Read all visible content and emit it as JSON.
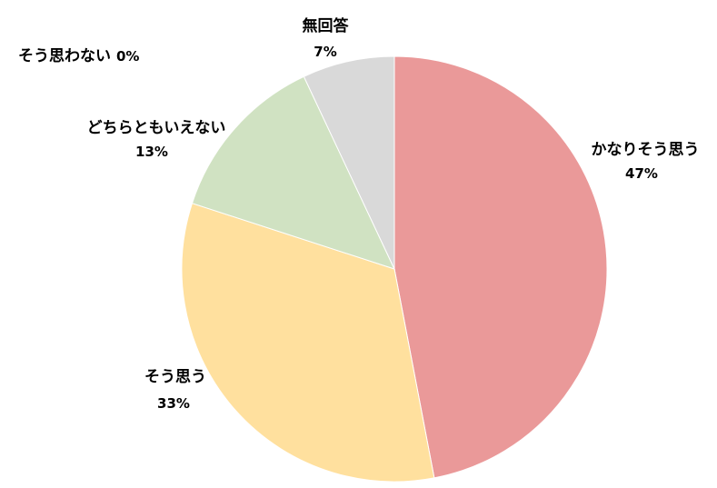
{
  "chart_data": {
    "type": "pie",
    "title": "",
    "slices": [
      {
        "label": "かなりそう思う",
        "value": 47,
        "value_label": "47%",
        "color": "#EA9999"
      },
      {
        "label": "そう思う",
        "value": 33,
        "value_label": "33%",
        "color": "#FFE09E"
      },
      {
        "label": "どちらともいえない",
        "value": 13,
        "value_label": "13%",
        "color": "#D0E2C2"
      },
      {
        "label": "無回答",
        "value": 7,
        "value_label": "7%",
        "color": "#D9D9D9"
      },
      {
        "label": "そう思わない",
        "value": 0,
        "value_label": "0%",
        "color": "#9DC3E6"
      }
    ],
    "start_angle_deg": 0,
    "direction": "clockwise"
  }
}
